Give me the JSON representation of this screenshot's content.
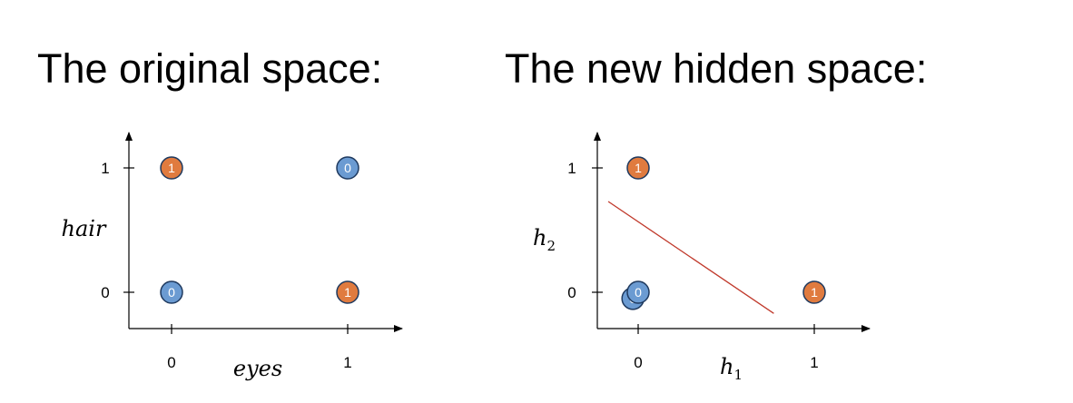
{
  "titles": {
    "left": "The original space:",
    "right": "The new hidden space:"
  },
  "colors": {
    "class_1": "#e07b3f",
    "class_0": "#6b9bd2",
    "point_stroke": "#1f3a5f",
    "boundary": "#c0392b",
    "axis": "#000000"
  },
  "chart_data": [
    {
      "type": "scatter",
      "title": "The original space:",
      "xlabel": "eyes",
      "ylabel": "hair",
      "xticks": [
        "0",
        "1"
      ],
      "yticks": [
        "0",
        "1"
      ],
      "points": [
        {
          "x": 0,
          "y": 1,
          "label": "1"
        },
        {
          "x": 1,
          "y": 1,
          "label": "0"
        },
        {
          "x": 0,
          "y": 0,
          "label": "0"
        },
        {
          "x": 1,
          "y": 0,
          "label": "1"
        }
      ]
    },
    {
      "type": "scatter",
      "title": "The new hidden space:",
      "xlabel": "h1",
      "ylabel": "h2",
      "xticks": [
        "0",
        "1"
      ],
      "yticks": [
        "0",
        "1"
      ],
      "points": [
        {
          "x": 0,
          "y": 1,
          "label": "1"
        },
        {
          "x": 1,
          "y": 0,
          "label": "1"
        },
        {
          "x": -0.03,
          "y": -0.05,
          "label": "0"
        },
        {
          "x": 0,
          "y": 0,
          "label": "0"
        }
      ],
      "decision_boundary": {
        "from": [
          -0.17,
          0.73
        ],
        "to": [
          0.77,
          -0.17
        ]
      }
    }
  ]
}
